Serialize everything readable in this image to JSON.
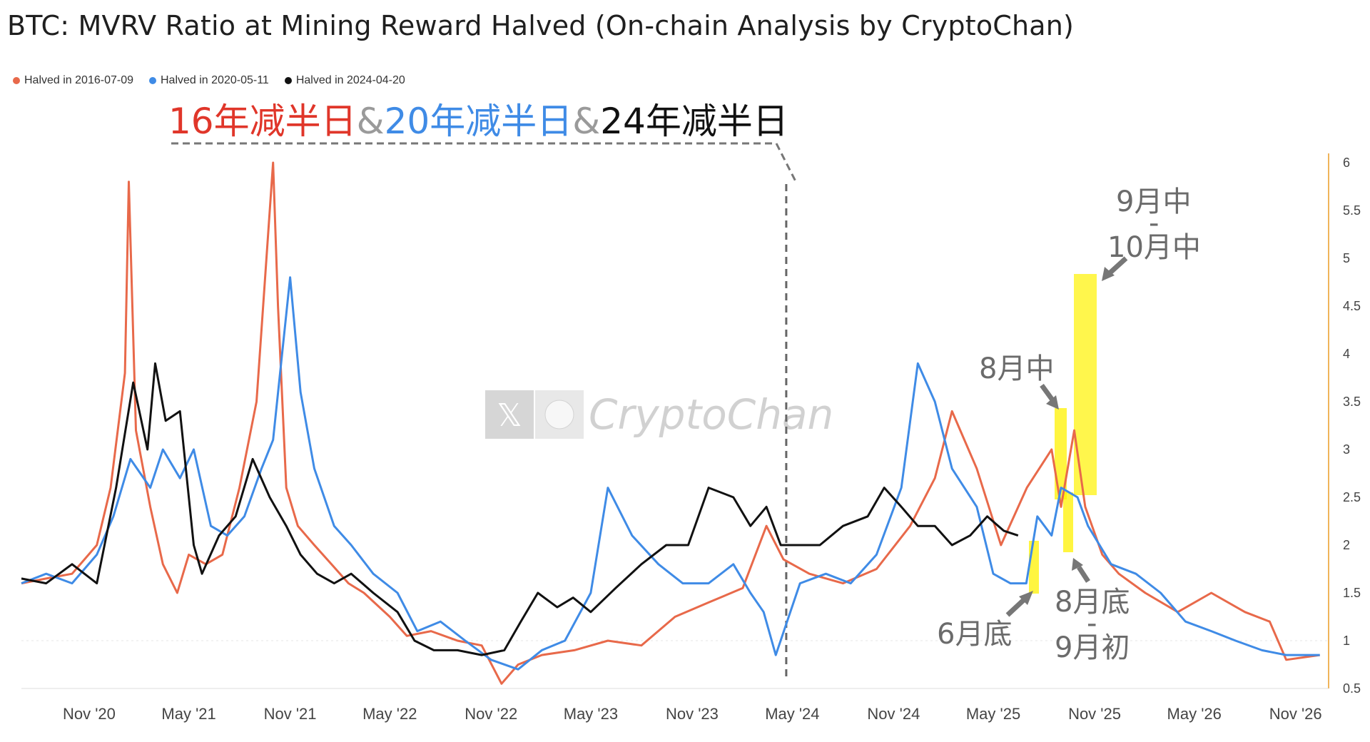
{
  "title": "BTC: MVRV Ratio at Mining Reward Halved (On-chain Analysis by CryptoChan)",
  "legend": [
    {
      "label": "Halved in 2016-07-09",
      "color": "#e8694a"
    },
    {
      "label": "Halved in 2020-05-11",
      "color": "#3f8be6"
    },
    {
      "label": "Halved in 2024-04-20",
      "color": "#111111"
    }
  ],
  "headline": {
    "part1": "16年减半日",
    "sep1": "&",
    "part2": "20年减半日",
    "sep2": "&",
    "part3": "24年减半日",
    "colors": {
      "part1": "#e0362a",
      "sep": "#9a9a9a",
      "part2": "#3f8be6",
      "part3": "#111111"
    }
  },
  "annotations": {
    "late_june": "6月底",
    "mid_aug": "8月中",
    "late_aug_early_sep_line1": "8月底",
    "late_aug_early_sep_dash": "-",
    "late_aug_early_sep_line2": "9月初",
    "mid_sep_mid_oct_line1": "9月中",
    "mid_sep_mid_oct_dash": "-",
    "mid_sep_mid_oct_line2": "10月中"
  },
  "watermark": {
    "text": "CryptoChan",
    "x_icon": "x-logo-icon",
    "avatar_icon": "panda-avatar-icon"
  },
  "highlight_color": "#fff200",
  "chart_data": {
    "type": "line",
    "title": "BTC: MVRV Ratio at Mining Reward Halved (On-chain Analysis by CryptoChan)",
    "x_ticks": [
      "Nov '20",
      "May '21",
      "Nov '21",
      "May '22",
      "Nov '22",
      "May '23",
      "Nov '23",
      "May '24",
      "Nov '24",
      "May '25",
      "Nov '25",
      "May '26",
      "Nov '26"
    ],
    "x_range": [
      "2020-07-01",
      "2026-12-31"
    ],
    "y_ticks": [
      "0.5",
      "1",
      "1.5",
      "2",
      "2.5",
      "3",
      "3.5",
      "4",
      "4.5",
      "5",
      "5.5",
      "6"
    ],
    "ylim": [
      0.5,
      6
    ],
    "y_axis_side": "right",
    "halving_marker_date": "2024-04-20",
    "series": [
      {
        "name": "Halved in 2016-07-09",
        "color": "#e8694a",
        "x": [
          "2020-07-01",
          "2020-08-15",
          "2020-10-01",
          "2020-11-15",
          "2020-12-10",
          "2021-01-05",
          "2021-01-12",
          "2021-01-25",
          "2021-02-20",
          "2021-03-15",
          "2021-04-10",
          "2021-05-01",
          "2021-06-01",
          "2021-07-01",
          "2021-08-01",
          "2021-09-01",
          "2021-10-01",
          "2021-10-10",
          "2021-10-25",
          "2021-11-15",
          "2021-12-15",
          "2022-01-15",
          "2022-02-15",
          "2022-03-15",
          "2022-05-01",
          "2022-06-01",
          "2022-07-15",
          "2022-09-01",
          "2022-10-15",
          "2022-11-20",
          "2022-12-20",
          "2023-02-01",
          "2023-04-01",
          "2023-06-01",
          "2023-08-01",
          "2023-10-01",
          "2023-12-01",
          "2024-02-01",
          "2024-03-15",
          "2024-04-15",
          "2024-06-01",
          "2024-08-01",
          "2024-10-01",
          "2024-12-01",
          "2025-01-15",
          "2025-02-15",
          "2025-04-01",
          "2025-05-15",
          "2025-07-01",
          "2025-08-15",
          "2025-09-01",
          "2025-09-25",
          "2025-10-15",
          "2025-11-15",
          "2025-12-15",
          "2026-02-01",
          "2026-04-01",
          "2026-06-01",
          "2026-08-01",
          "2026-09-15",
          "2026-10-15",
          "2026-12-15"
        ],
        "y": [
          1.6,
          1.65,
          1.7,
          2.0,
          2.6,
          3.8,
          5.8,
          3.2,
          2.4,
          1.8,
          1.5,
          1.9,
          1.8,
          1.9,
          2.6,
          3.5,
          6.0,
          4.5,
          2.6,
          2.2,
          2.0,
          1.8,
          1.6,
          1.5,
          1.25,
          1.05,
          1.1,
          1.0,
          0.95,
          0.55,
          0.75,
          0.85,
          0.9,
          1.0,
          0.95,
          1.25,
          1.4,
          1.55,
          2.2,
          1.85,
          1.7,
          1.6,
          1.75,
          2.2,
          2.7,
          3.4,
          2.8,
          2.0,
          2.6,
          3.0,
          2.4,
          3.2,
          2.4,
          1.9,
          1.7,
          1.5,
          1.3,
          1.5,
          1.3,
          1.2,
          0.8,
          0.85
        ]
      },
      {
        "name": "Halved in 2020-05-11",
        "color": "#3f8be6",
        "x": [
          "2020-07-01",
          "2020-08-15",
          "2020-10-01",
          "2020-11-15",
          "2020-12-15",
          "2021-01-15",
          "2021-02-20",
          "2021-03-15",
          "2021-04-15",
          "2021-05-10",
          "2021-06-10",
          "2021-07-10",
          "2021-08-10",
          "2021-09-10",
          "2021-10-01",
          "2021-11-01",
          "2021-11-20",
          "2021-12-15",
          "2022-01-20",
          "2022-02-20",
          "2022-04-01",
          "2022-05-15",
          "2022-06-20",
          "2022-08-01",
          "2022-09-15",
          "2022-11-01",
          "2022-12-20",
          "2023-02-01",
          "2023-03-15",
          "2023-05-01",
          "2023-06-01",
          "2023-07-15",
          "2023-09-01",
          "2023-10-15",
          "2023-12-01",
          "2024-01-15",
          "2024-02-15",
          "2024-03-10",
          "2024-04-01",
          "2024-05-15",
          "2024-07-01",
          "2024-08-15",
          "2024-10-01",
          "2024-11-15",
          "2024-12-15",
          "2025-01-15",
          "2025-02-15",
          "2025-04-01",
          "2025-05-01",
          "2025-06-01",
          "2025-06-30",
          "2025-07-20",
          "2025-08-15",
          "2025-09-01",
          "2025-10-01",
          "2025-10-20",
          "2025-12-01",
          "2026-01-15",
          "2026-03-01",
          "2026-04-15",
          "2026-06-01",
          "2026-07-15",
          "2026-09-01",
          "2026-10-15",
          "2026-12-15"
        ],
        "y": [
          1.6,
          1.7,
          1.6,
          1.9,
          2.3,
          2.9,
          2.6,
          3.0,
          2.7,
          3.0,
          2.2,
          2.1,
          2.3,
          2.8,
          3.1,
          4.8,
          3.6,
          2.8,
          2.2,
          2.0,
          1.7,
          1.5,
          1.1,
          1.2,
          1.0,
          0.8,
          0.7,
          0.9,
          1.0,
          1.5,
          2.6,
          2.1,
          1.8,
          1.6,
          1.6,
          1.8,
          1.5,
          1.3,
          0.85,
          1.6,
          1.7,
          1.6,
          1.9,
          2.6,
          3.9,
          3.5,
          2.8,
          2.4,
          1.7,
          1.6,
          1.6,
          2.3,
          2.1,
          2.6,
          2.5,
          2.2,
          1.8,
          1.7,
          1.5,
          1.2,
          1.1,
          1.0,
          0.9,
          0.85,
          0.85
        ]
      },
      {
        "name": "Halved in 2024-04-20",
        "color": "#111111",
        "x": [
          "2020-07-01",
          "2020-08-15",
          "2020-10-01",
          "2020-11-15",
          "2020-12-20",
          "2021-01-20",
          "2021-02-15",
          "2021-03-01",
          "2021-03-20",
          "2021-04-15",
          "2021-05-10",
          "2021-05-25",
          "2021-06-25",
          "2021-07-25",
          "2021-08-25",
          "2021-09-25",
          "2021-10-25",
          "2021-11-20",
          "2021-12-20",
          "2022-01-20",
          "2022-02-20",
          "2022-04-01",
          "2022-05-15",
          "2022-06-15",
          "2022-07-20",
          "2022-09-01",
          "2022-10-15",
          "2022-11-25",
          "2022-12-25",
          "2023-01-25",
          "2023-03-01",
          "2023-03-30",
          "2023-05-01",
          "2023-06-15",
          "2023-08-01",
          "2023-09-15",
          "2023-10-25",
          "2023-12-01",
          "2024-01-15",
          "2024-02-15",
          "2024-03-15",
          "2024-04-10",
          "2024-05-15",
          "2024-06-20",
          "2024-08-01",
          "2024-09-15",
          "2024-10-15",
          "2024-11-15",
          "2024-12-15",
          "2025-01-15",
          "2025-02-15",
          "2025-03-20",
          "2025-04-20",
          "2025-05-20",
          "2025-06-15"
        ],
        "y": [
          1.65,
          1.6,
          1.8,
          1.6,
          2.6,
          3.7,
          3.0,
          3.9,
          3.3,
          3.4,
          2.0,
          1.7,
          2.1,
          2.3,
          2.9,
          2.5,
          2.2,
          1.9,
          1.7,
          1.6,
          1.7,
          1.5,
          1.3,
          1.0,
          0.9,
          0.9,
          0.85,
          0.9,
          1.2,
          1.5,
          1.35,
          1.45,
          1.3,
          1.55,
          1.8,
          2.0,
          2.0,
          2.6,
          2.5,
          2.2,
          2.4,
          2.0,
          2.0,
          2.0,
          2.2,
          2.3,
          2.6,
          2.4,
          2.2,
          2.2,
          2.0,
          2.1,
          2.3,
          2.15,
          2.1
        ]
      }
    ]
  }
}
